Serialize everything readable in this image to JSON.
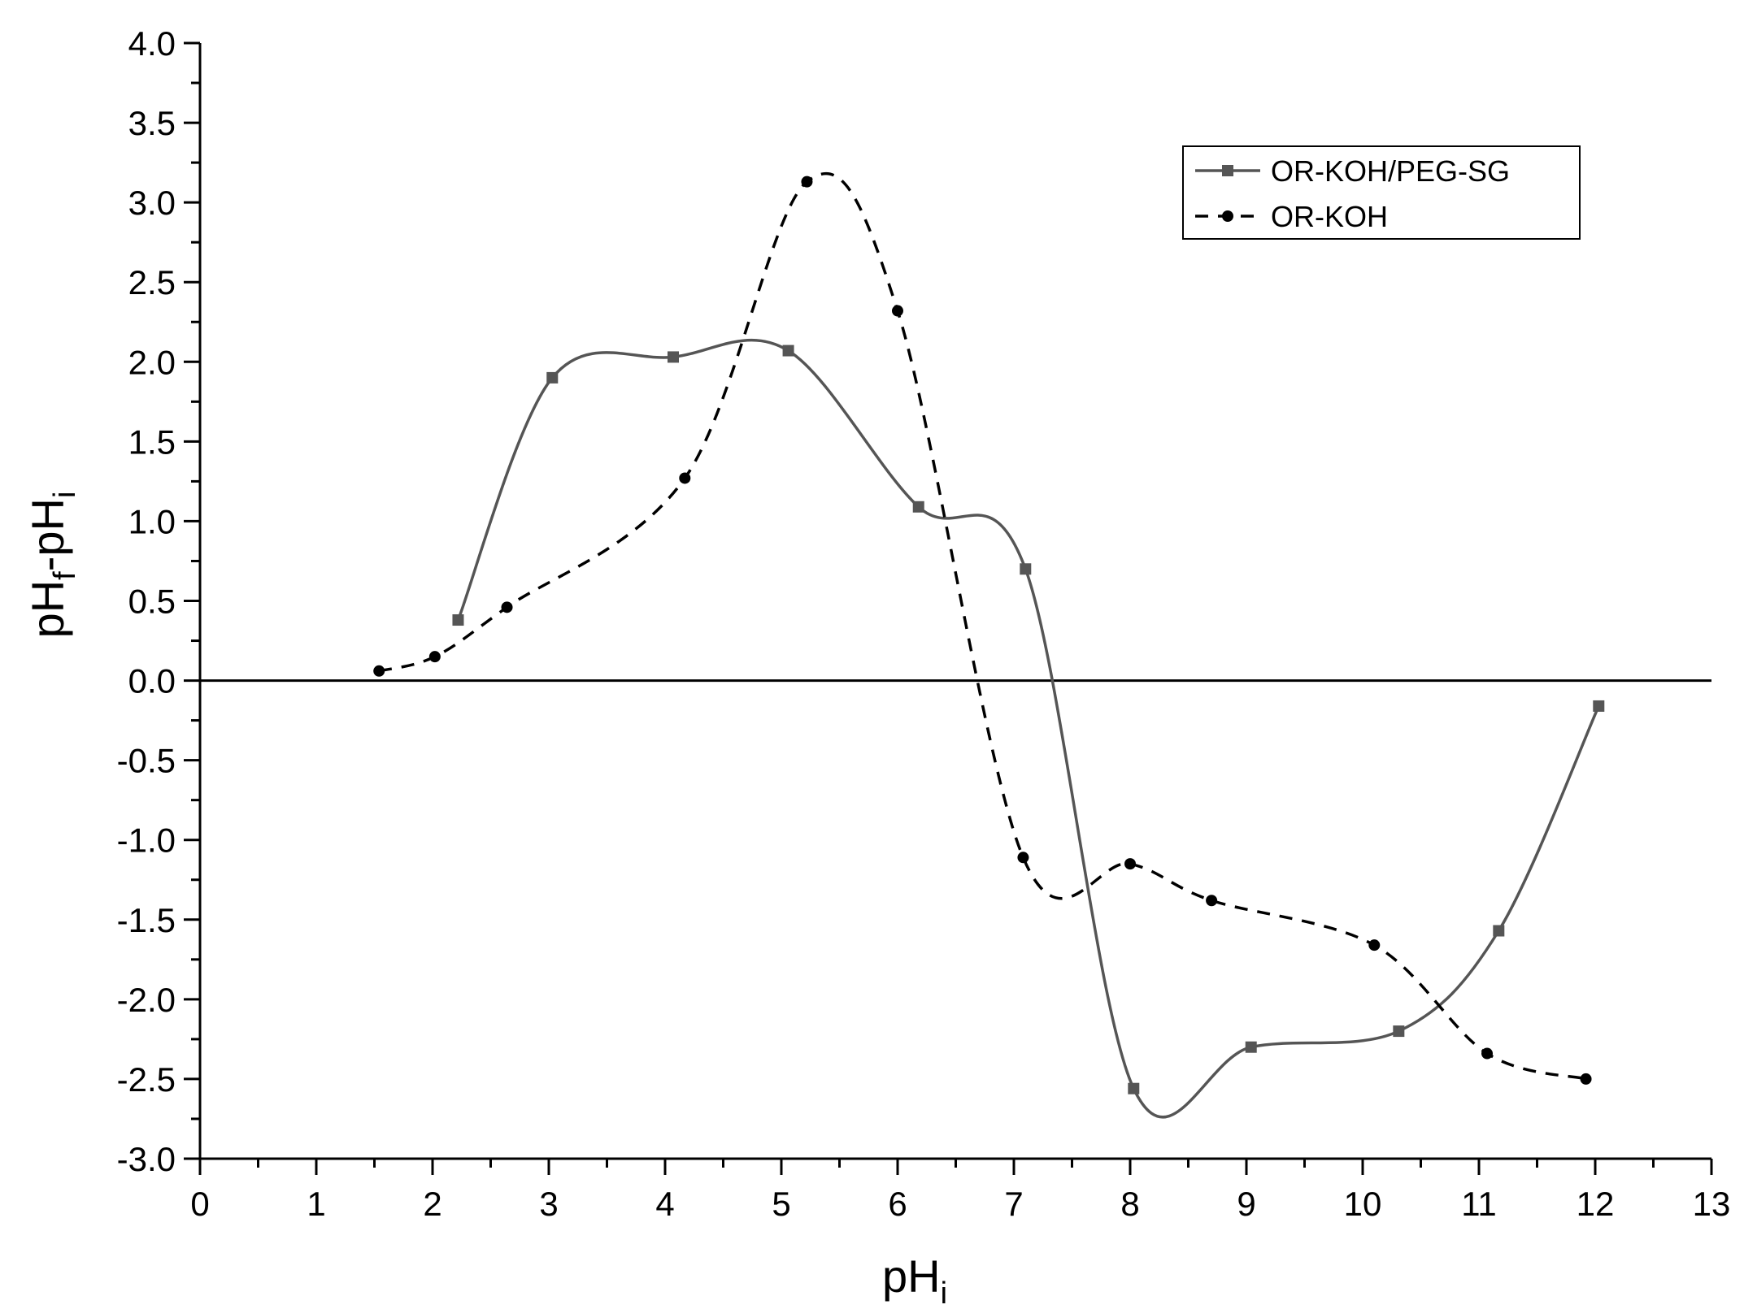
{
  "chart_data": {
    "type": "line",
    "xlabel": "pH",
    "xlabel_sub": "i",
    "ylabel_parts": [
      "pH",
      "f",
      "-pH",
      "i"
    ],
    "xlim": [
      0,
      13
    ],
    "ylim": [
      -3.0,
      4.0
    ],
    "x_ticks": [
      "0",
      "1",
      "2",
      "3",
      "4",
      "5",
      "6",
      "7",
      "8",
      "9",
      "10",
      "11",
      "12",
      "13"
    ],
    "y_ticks": [
      "4.0",
      "3.5",
      "3.0",
      "2.5",
      "2.0",
      "1.5",
      "1.0",
      "0.5",
      "0.0",
      "-0.5",
      "-1.0",
      "-1.5",
      "-2.0",
      "-2.5",
      "-3.0"
    ],
    "grid": false,
    "reference_line_y": 0,
    "legend_position": "top-right",
    "series": [
      {
        "name": "OR-KOH/PEG-SG",
        "line_style": "solid",
        "marker": "square",
        "color": "#555555",
        "x": [
          2.22,
          3.03,
          4.07,
          5.06,
          6.18,
          7.1,
          8.03,
          9.04,
          10.31,
          11.17,
          12.03
        ],
        "y": [
          0.38,
          1.9,
          2.03,
          2.07,
          1.09,
          0.7,
          -2.56,
          -2.3,
          -2.2,
          -1.57,
          -0.16
        ]
      },
      {
        "name": "OR-KOH",
        "line_style": "dashed",
        "marker": "circle",
        "color": "#000000",
        "x": [
          1.54,
          2.02,
          2.64,
          4.17,
          5.22,
          6.0,
          7.08,
          8.0,
          8.7,
          10.1,
          11.07,
          11.92
        ],
        "y": [
          0.06,
          0.15,
          0.46,
          1.27,
          3.13,
          2.32,
          -1.11,
          -1.15,
          -1.38,
          -1.66,
          -2.34,
          -2.5
        ]
      }
    ]
  }
}
